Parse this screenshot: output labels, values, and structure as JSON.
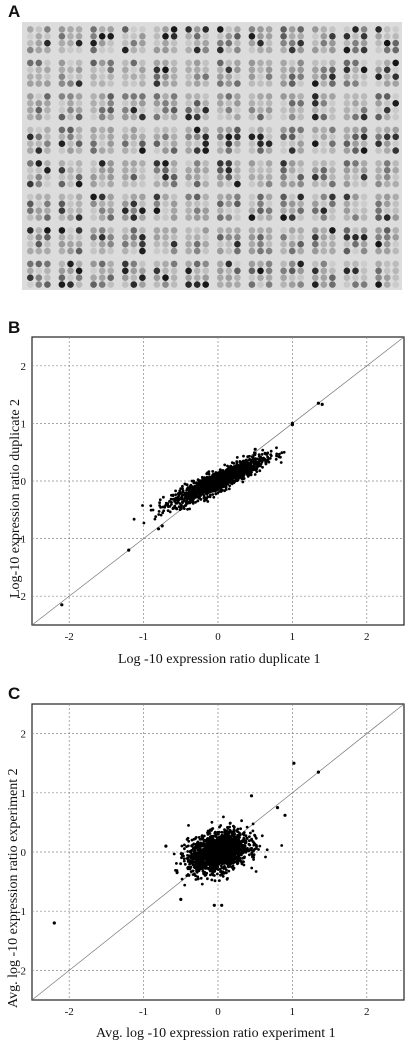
{
  "panels": {
    "a": {
      "letter": "A"
    },
    "b": {
      "letter": "B"
    },
    "c": {
      "letter": "C"
    }
  },
  "chart_data": [
    {
      "type": "heatmap",
      "panel": "A",
      "description_visible": "microarray grid of spots in 12 columns x 8 rows of blocks, 3x4 spots each",
      "grid_blocks": [
        12,
        8
      ],
      "spots_per_block": [
        3,
        4
      ]
    },
    {
      "type": "scatter",
      "panel": "B",
      "xlabel": "Log -10 expression ratio duplicate 1",
      "ylabel": "Log-10 expression ratio duplicate 2",
      "xlim": [
        -2.5,
        2.5
      ],
      "ylim": [
        -2.5,
        2.5
      ],
      "xticks": [
        "-2",
        "-1",
        "0",
        "1",
        "2"
      ],
      "yticks": [
        "-2",
        "-1",
        "0",
        "1",
        "2"
      ],
      "grid": true,
      "diagonal": true,
      "points_outliers": [
        [
          -2.1,
          -2.15
        ],
        [
          -1.2,
          -1.2
        ],
        [
          -0.8,
          -0.83
        ],
        [
          -0.75,
          -0.78
        ],
        [
          1.0,
          0.98
        ],
        [
          1.35,
          1.35
        ],
        [
          1.4,
          1.33
        ],
        [
          1.0,
          1.0
        ],
        [
          0.5,
          0.55
        ],
        [
          -0.5,
          -0.45
        ]
      ],
      "cloud": {
        "center": [
          0,
          0
        ],
        "spread_x": 0.3,
        "spread_y": 0.2,
        "correlation": 0.9,
        "n": 1400
      }
    },
    {
      "type": "scatter",
      "panel": "C",
      "xlabel": "Avg. log -10 expression ratio experiment 1",
      "ylabel": "Avg. log -10 expression ratio experiment 2",
      "xlim": [
        -2.5,
        2.5
      ],
      "ylim": [
        -2.5,
        2.5
      ],
      "xticks": [
        "-2",
        "-1",
        "0",
        "1",
        "2"
      ],
      "yticks": [
        "-2",
        "-1",
        "0",
        "1",
        "2"
      ],
      "grid": true,
      "diagonal": true,
      "points_outliers": [
        [
          -2.2,
          -1.2
        ],
        [
          1.02,
          1.5
        ],
        [
          1.35,
          1.35
        ],
        [
          0.8,
          0.75
        ],
        [
          0.9,
          0.62
        ],
        [
          -0.5,
          -0.8
        ],
        [
          -0.05,
          -0.9
        ],
        [
          0.05,
          -0.9
        ],
        [
          0.45,
          0.95
        ],
        [
          -0.7,
          0.1
        ]
      ],
      "cloud": {
        "center": [
          0,
          0
        ],
        "spread_x": 0.2,
        "spread_y": 0.17,
        "correlation": 0.35,
        "n": 1600
      }
    }
  ]
}
